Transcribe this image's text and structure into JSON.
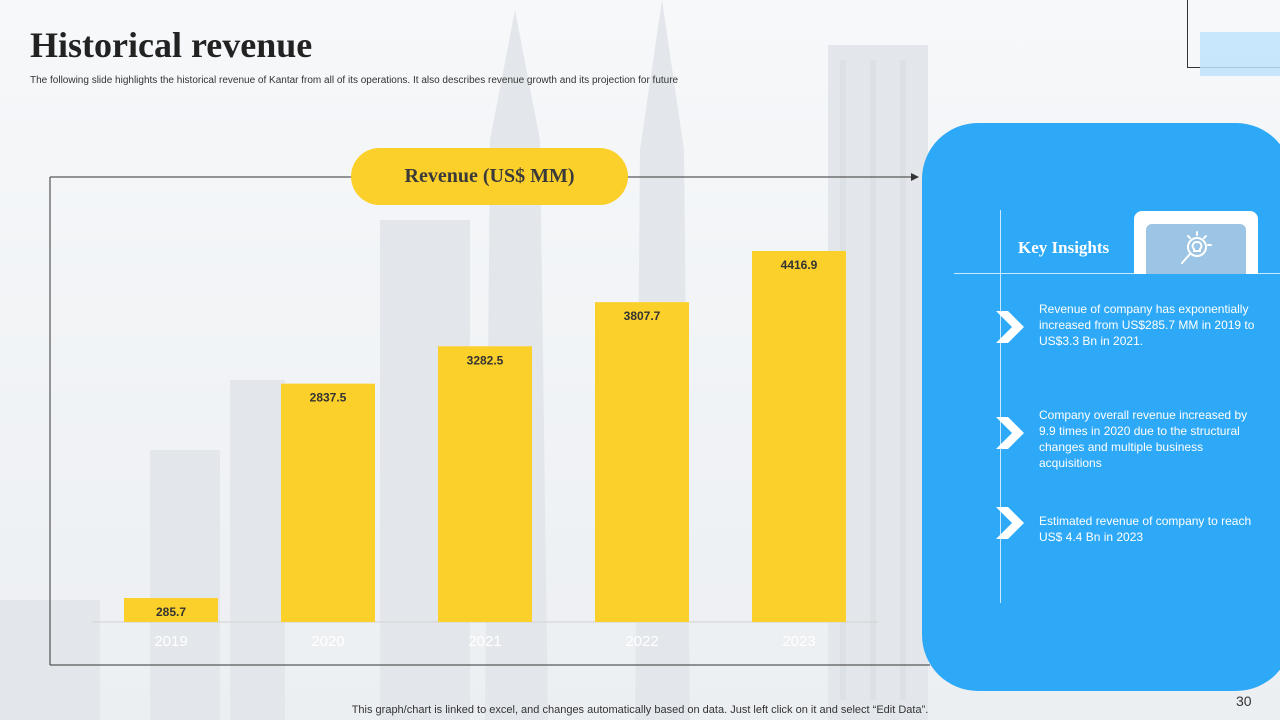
{
  "header": {
    "title": "Historical revenue",
    "subtitle": "The following slide highlights the historical revenue  of Kantar from all of its operations.  It also describes revenue  growth and its projection for future"
  },
  "chart_data": {
    "type": "bar",
    "title": "Revenue (US$ MM)",
    "categories": [
      "2019",
      "2020",
      "2021",
      "2022",
      "2023"
    ],
    "values": [
      285.7,
      2837.5,
      3282.5,
      3807.7,
      4416.9
    ],
    "value_labels": [
      "285.7",
      "2837.5",
      "3282.5",
      "3807.7",
      "4416.9"
    ],
    "ylim": [
      0,
      5000
    ],
    "grid": false,
    "bar_color": "#fbd02a"
  },
  "insights": {
    "title": "Key Insights",
    "icon": "lightbulb-search-icon",
    "items": [
      {
        "icon": "chevron-right-icon",
        "text": "Revenue  of company has exponentially increased from US$285.7 MM in 2019 to US$3.3 Bn in 2021."
      },
      {
        "icon": "chevron-right-icon",
        "text": "Company overall  revenue increased by 9.9 times  in 2020 due to the structural  changes and multiple business acquisitions"
      },
      {
        "icon": "chevron-right-icon",
        "text": "Estimated revenue    of company to reach US$ 4.4 Bn in 2023"
      }
    ]
  },
  "footer": {
    "note": "This graph/chart is linked to excel, and changes automatically based on data. Just left click on it and select “Edit Data”.",
    "page_number": "30"
  },
  "colors": {
    "accent": "#fbd02a",
    "panel": "#2ea9f7",
    "text": "#222222"
  }
}
